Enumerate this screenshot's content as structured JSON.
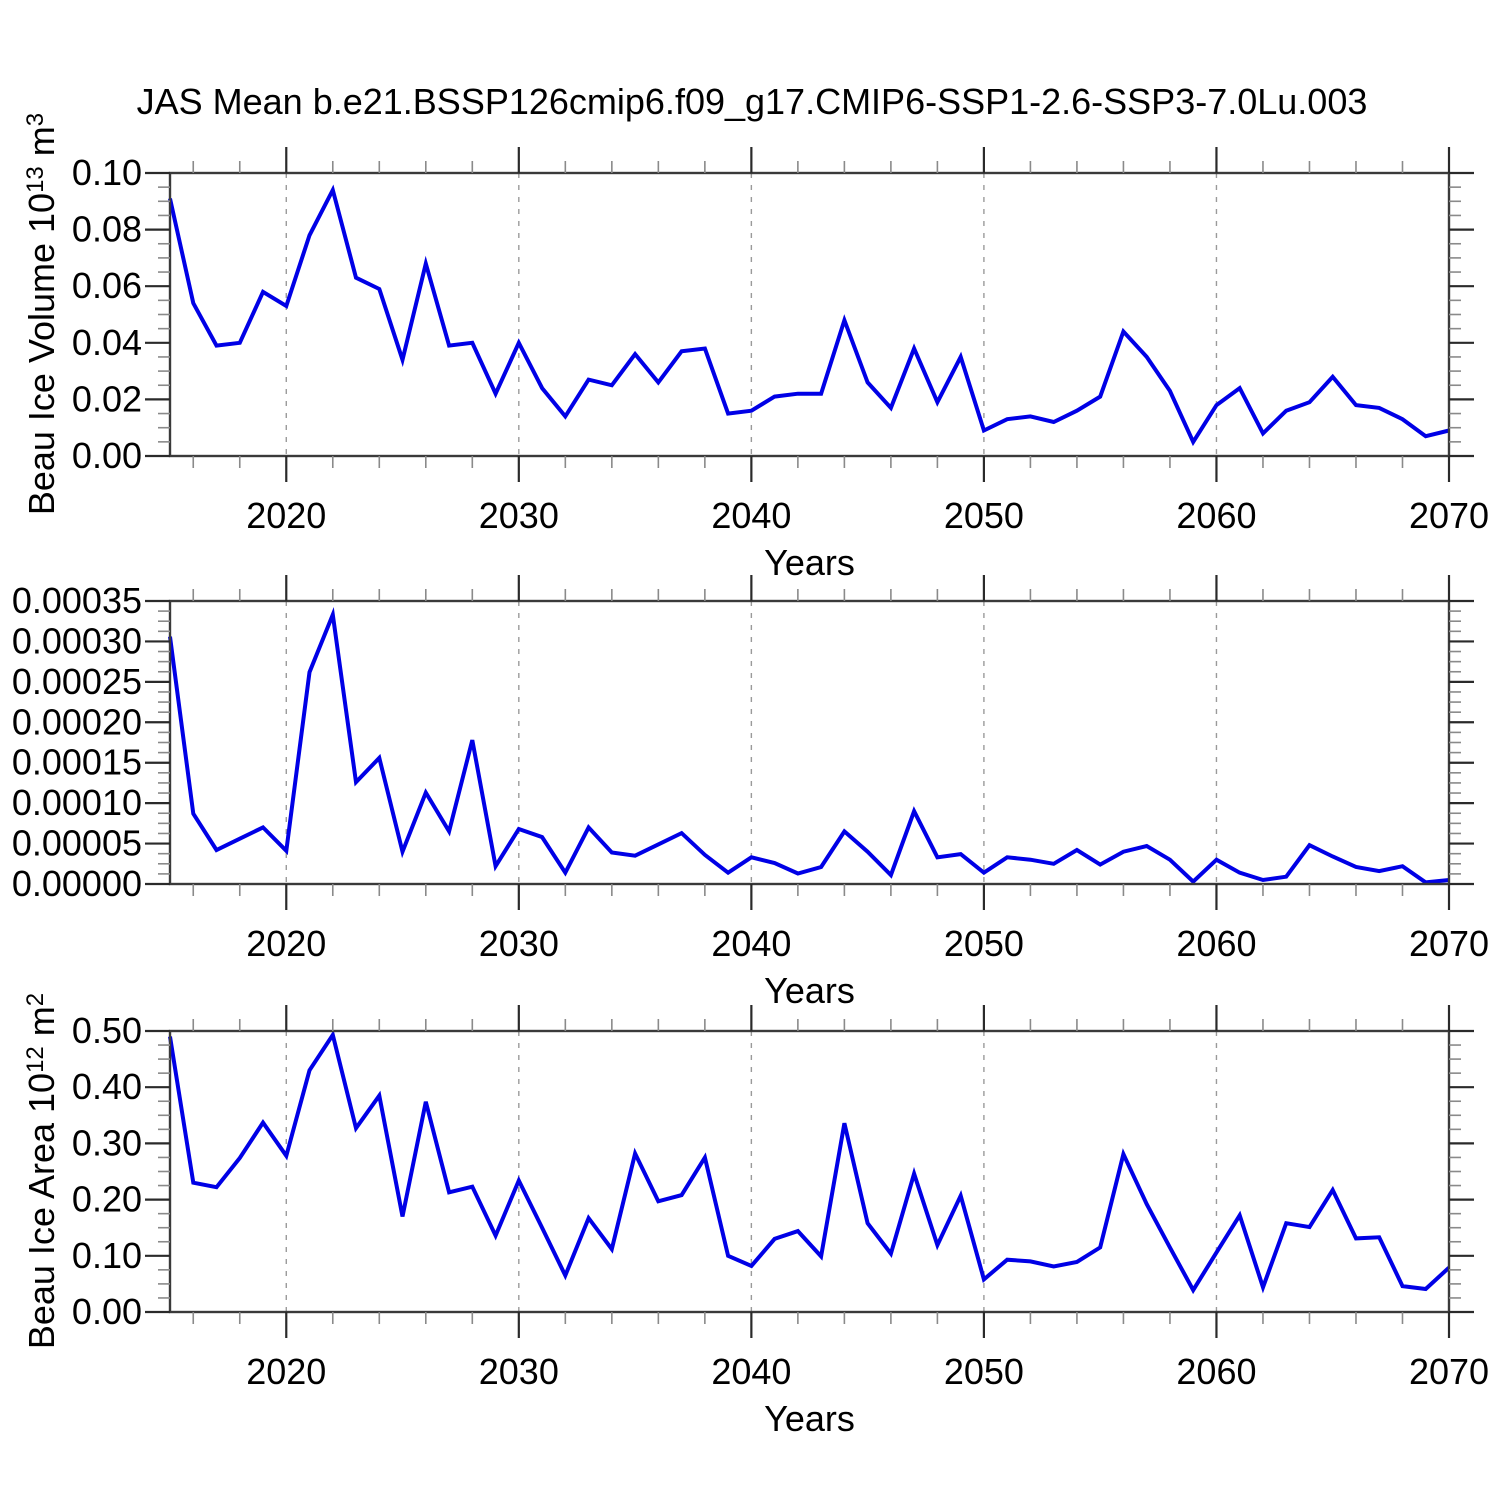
{
  "title": "JAS Mean b.e21.BSSP126cmip6.f09_g17.CMIP6-SSP1-2.6-SSP3-7.0Lu.003",
  "line_color": "#0000e6",
  "frame_color": "#3a3a3a",
  "major_tick_color": "#2a2a2a",
  "minor_tick_color": "#8a8a8a",
  "gridline_color": "#9a9a9a",
  "x_axis": {
    "label": "Years",
    "start_year": 2015,
    "end_year": 2070,
    "major_ticks": [
      2020,
      2030,
      2040,
      2050,
      2060,
      2070
    ],
    "tick_labels": [
      "2020",
      "2030",
      "2040",
      "2050",
      "2060",
      "2070"
    ],
    "minor_tick_step": 2,
    "gridline_years": [
      2020,
      2030,
      2040,
      2050,
      2060
    ]
  },
  "chart_data": [
    {
      "type": "line",
      "name": "beau-ice-volume",
      "title": "JAS Mean b.e21.BSSP126cmip6.f09_g17.CMIP6-SSP1-2.6-SSP3-7.0Lu.003",
      "xlabel": "Years",
      "ylabel": "Beau Ice Volume 10^13 m^3",
      "ylabel_parts": [
        [
          "Beau Ice Volume 10",
          "normal"
        ],
        [
          "13",
          "sup"
        ],
        [
          " m",
          "normal"
        ],
        [
          "3",
          "sup"
        ]
      ],
      "ylim": [
        0,
        0.1
      ],
      "yticks": [
        0,
        0.02,
        0.04,
        0.06,
        0.08,
        0.1
      ],
      "ytick_labels": [
        "0.00",
        "0.02",
        "0.04",
        "0.06",
        "0.08",
        "0.10"
      ],
      "yminor_step": 0.005,
      "x_start": 2015,
      "x_step": 1,
      "values": [
        0.091,
        0.054,
        0.039,
        0.04,
        0.058,
        0.053,
        0.078,
        0.094,
        0.063,
        0.059,
        0.034,
        0.068,
        0.039,
        0.04,
        0.022,
        0.04,
        0.024,
        0.014,
        0.027,
        0.025,
        0.036,
        0.026,
        0.037,
        0.038,
        0.015,
        0.016,
        0.021,
        0.022,
        0.022,
        0.048,
        0.026,
        0.017,
        0.038,
        0.019,
        0.035,
        0.009,
        0.013,
        0.014,
        0.012,
        0.016,
        0.021,
        0.044,
        0.035,
        0.023,
        0.005,
        0.018,
        0.024,
        0.008,
        0.016,
        0.019,
        0.028,
        0.018,
        0.017,
        0.013,
        0.007,
        0.009
      ]
    },
    {
      "type": "line",
      "name": "beau-ice-middle",
      "xlabel": "Years",
      "ylabel": "",
      "ylabel_parts": [],
      "ylim": [
        0,
        0.00035
      ],
      "yticks": [
        0,
        5e-05,
        0.0001,
        0.00015,
        0.0002,
        0.00025,
        0.0003,
        0.00035
      ],
      "ytick_labels": [
        "0.00000",
        "0.00005",
        "0.00010",
        "0.00015",
        "0.00020",
        "0.00025",
        "0.00030",
        "0.00035"
      ],
      "yminor_step": 1.25e-05,
      "x_start": 2015,
      "x_step": 1,
      "values": [
        0.000306,
        8.7e-05,
        4.2e-05,
        5.6e-05,
        7e-05,
        4.1e-05,
        0.000262,
        0.000333,
        0.000126,
        0.000156,
        4e-05,
        0.000113,
        6.5e-05,
        0.000178,
        2.2e-05,
        6.8e-05,
        5.8e-05,
        1.4e-05,
        7e-05,
        3.9e-05,
        3.5e-05,
        4.9e-05,
        6.3e-05,
        3.6e-05,
        1.4e-05,
        3.3e-05,
        2.6e-05,
        1.3e-05,
        2.1e-05,
        6.5e-05,
        4e-05,
        1.1e-05,
        9e-05,
        3.3e-05,
        3.7e-05,
        1.4e-05,
        3.3e-05,
        3e-05,
        2.5e-05,
        4.2e-05,
        2.4e-05,
        4e-05,
        4.7e-05,
        3e-05,
        3e-06,
        3e-05,
        1.4e-05,
        5e-06,
        9e-06,
        4.8e-05,
        3.4e-05,
        2.1e-05,
        1.6e-05,
        2.2e-05,
        2e-06,
        5e-06
      ]
    },
    {
      "type": "line",
      "name": "beau-ice-area",
      "xlabel": "Years",
      "ylabel": "Beau Ice Area 10^12 m^2",
      "ylabel_parts": [
        [
          "Beau Ice Area 10",
          "normal"
        ],
        [
          "12",
          "sup"
        ],
        [
          " m",
          "normal"
        ],
        [
          "2",
          "sup"
        ]
      ],
      "ylim": [
        0,
        0.5
      ],
      "yticks": [
        0,
        0.1,
        0.2,
        0.3,
        0.4,
        0.5
      ],
      "ytick_labels": [
        "0.00",
        "0.10",
        "0.20",
        "0.30",
        "0.40",
        "0.50"
      ],
      "yminor_step": 0.025,
      "x_start": 2015,
      "x_step": 1,
      "values": [
        0.49,
        0.23,
        0.222,
        0.274,
        0.337,
        0.278,
        0.43,
        0.493,
        0.327,
        0.385,
        0.17,
        0.374,
        0.213,
        0.223,
        0.136,
        0.234,
        0.15,
        0.065,
        0.167,
        0.112,
        0.282,
        0.197,
        0.208,
        0.275,
        0.1,
        0.082,
        0.13,
        0.144,
        0.099,
        0.336,
        0.158,
        0.104,
        0.246,
        0.119,
        0.207,
        0.058,
        0.093,
        0.09,
        0.081,
        0.089,
        0.115,
        0.281,
        0.192,
        0.115,
        0.039,
        0.106,
        0.172,
        0.044,
        0.158,
        0.151,
        0.217,
        0.131,
        0.133,
        0.046,
        0.041,
        0.079
      ]
    }
  ]
}
